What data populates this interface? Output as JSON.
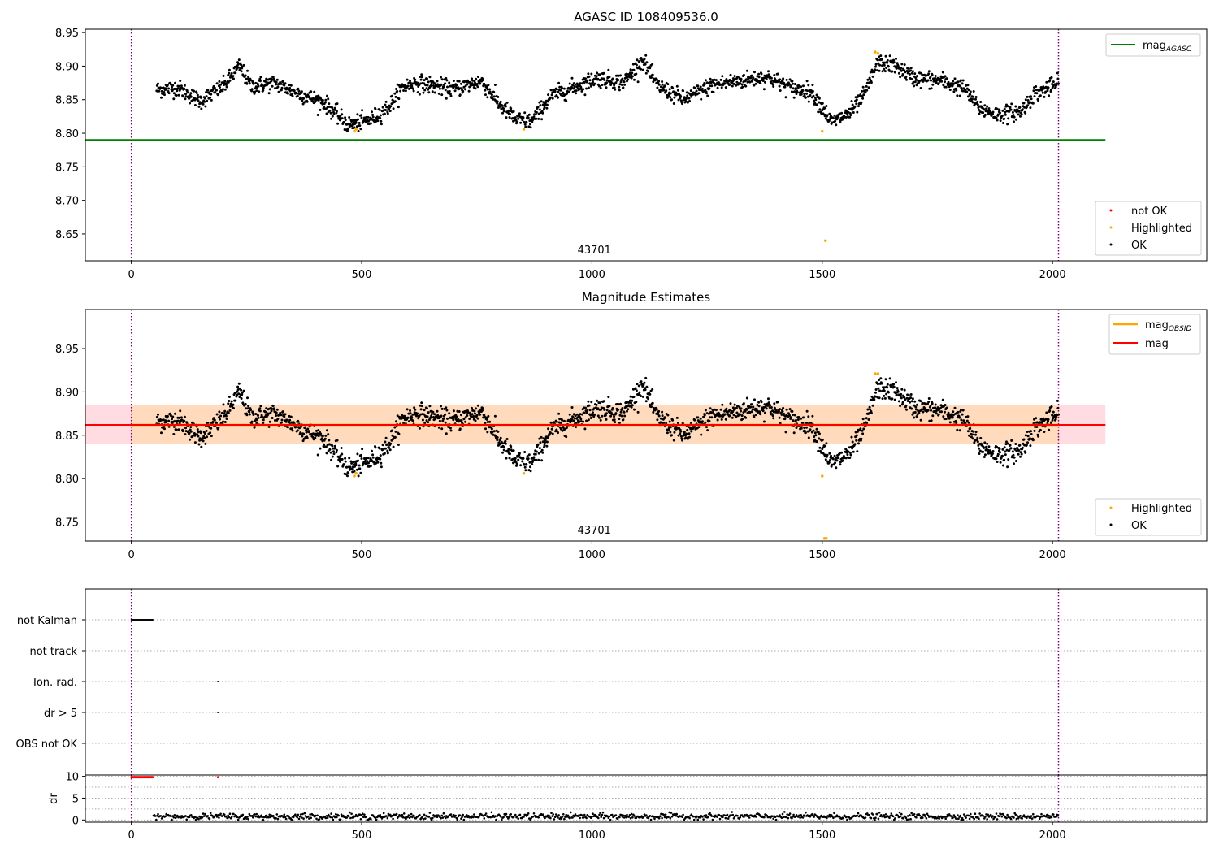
{
  "chart_data": [
    {
      "type": "scatter",
      "title": "AGASC ID 108409536.0",
      "xlim": [
        -100,
        2335
      ],
      "ylim": [
        8.61,
        8.955
      ],
      "x_ticks": [
        "0",
        "500",
        "1000",
        "1500",
        "2000"
      ],
      "x_tick_values": [
        0,
        500,
        1000,
        1500,
        2000
      ],
      "y_ticks": [
        "8.65",
        "8.70",
        "8.75",
        "8.80",
        "8.85",
        "8.90",
        "8.95"
      ],
      "y_tick_values": [
        8.65,
        8.7,
        8.75,
        8.8,
        8.85,
        8.9,
        8.95
      ],
      "vlines": [
        0,
        2013
      ],
      "vline_color": "#800080",
      "obsid_label": "43701",
      "obsid_label_x": 1005,
      "hline": {
        "name": "mag_AGASC",
        "label_main": "mag",
        "label_sub": "AGASC",
        "value": 8.79,
        "x_range": [
          -100,
          2115
        ],
        "color": "#008000"
      },
      "highlighted_points": [
        [
          484,
          8.803
        ],
        [
          488,
          8.806
        ],
        [
          852,
          8.806
        ],
        [
          1500,
          8.803
        ],
        [
          1507,
          8.64
        ],
        [
          1615,
          8.921
        ],
        [
          1621,
          8.919
        ]
      ],
      "legend": {
        "lines": [
          "mag_AGASC"
        ],
        "points": [
          {
            "label": "not OK",
            "color": "#ff0000"
          },
          {
            "label": "Highlighted",
            "color": "#ffa500"
          },
          {
            "label": "OK",
            "color": "#000000"
          }
        ]
      }
    },
    {
      "type": "scatter",
      "title": "Magnitude Estimates",
      "xlim": [
        -100,
        2335
      ],
      "ylim": [
        8.728,
        8.995
      ],
      "x_ticks": [
        "0",
        "500",
        "1000",
        "1500",
        "2000"
      ],
      "x_tick_values": [
        0,
        500,
        1000,
        1500,
        2000
      ],
      "y_ticks": [
        "8.75",
        "8.80",
        "8.85",
        "8.90",
        "8.95"
      ],
      "y_tick_values": [
        8.75,
        8.8,
        8.85,
        8.9,
        8.95
      ],
      "vlines": [
        0,
        2013
      ],
      "obsid_label": "43701",
      "obsid_label_x": 1005,
      "mag_line": {
        "label": "mag",
        "value": 8.862,
        "x_range": [
          -100,
          2115
        ],
        "color": "#ff0000"
      },
      "mag_obsid": {
        "label_main": "mag",
        "label_sub": "OBSID",
        "value": 8.862,
        "x_range": [
          0,
          2013
        ],
        "color": "#ffa500"
      },
      "band_outer": {
        "low": 8.84,
        "high": 8.885,
        "x_range": [
          -100,
          2115
        ],
        "color": "#ffc0cb"
      },
      "band_inner": {
        "low": 8.84,
        "high": 8.885,
        "x_range": [
          0,
          2013
        ],
        "color": "#ffdab9"
      },
      "highlighted_points": [
        [
          484,
          8.803
        ],
        [
          488,
          8.806
        ],
        [
          852,
          8.806
        ],
        [
          1500,
          8.803
        ],
        [
          1505,
          8.731
        ],
        [
          1509,
          8.731
        ],
        [
          1615,
          8.921
        ],
        [
          1621,
          8.921
        ]
      ],
      "legend": {
        "lines": [
          "mag_OBSID",
          "mag"
        ],
        "points": [
          {
            "label": "Highlighted",
            "color": "#ffa500"
          },
          {
            "label": "OK",
            "color": "#000000"
          }
        ]
      }
    },
    {
      "type": "scatter",
      "title": "",
      "xlim": [
        -100,
        2335
      ],
      "flag_rows": [
        "not Kalman",
        "not track",
        "Ion. rad.",
        "dr > 5",
        "OBS not OK"
      ],
      "flag_points": {
        "not Kalman": [
          [
            0,
            47
          ]
        ],
        "Ion. rad.": [
          [
            188,
            188
          ]
        ],
        "dr > 5": [
          [
            188,
            188
          ]
        ]
      },
      "dr_panel": {
        "ylabel": "dr",
        "ylim": [
          -0.5,
          10.3
        ],
        "y_ticks": [
          "0",
          "5",
          "10"
        ],
        "y_tick_values": [
          0,
          5,
          10
        ],
        "dr_fail_points": [
          [
            0,
            47,
            9.8
          ],
          [
            188,
            188,
            9.8
          ]
        ],
        "dr_typical": 0.8
      },
      "x_ticks": [
        "0",
        "500",
        "1000",
        "1500",
        "2000"
      ],
      "x_tick_values": [
        0,
        500,
        1000,
        1500,
        2000
      ]
    }
  ]
}
